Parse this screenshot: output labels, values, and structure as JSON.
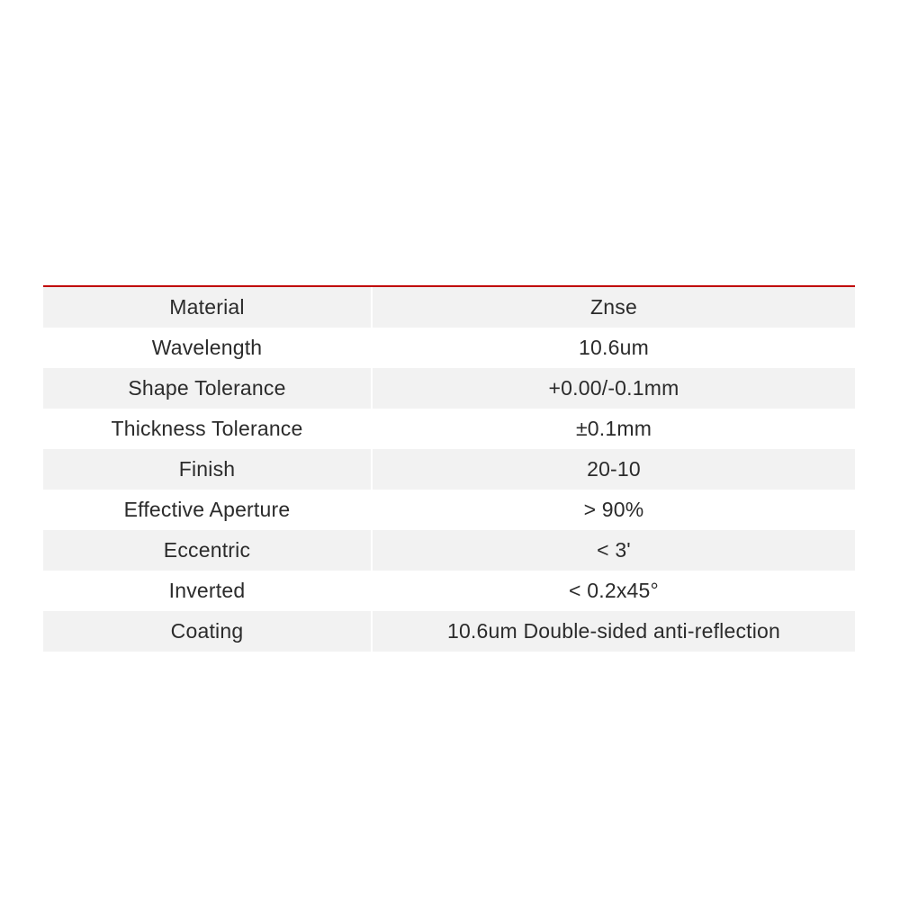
{
  "page": {
    "background_color": "#ffffff"
  },
  "table": {
    "accent_color": "#c00000",
    "stripe_color": "#f2f2f2",
    "text_color": "#2b2b2b",
    "columns": [
      "label",
      "value"
    ],
    "rows": [
      {
        "label": "Material",
        "value": "Znse"
      },
      {
        "label": "Wavelength",
        "value": "10.6um"
      },
      {
        "label": "Shape Tolerance",
        "value": "+0.00/-0.1mm"
      },
      {
        "label": "Thickness Tolerance",
        "value": "±0.1mm"
      },
      {
        "label": "Finish",
        "value": "20-10"
      },
      {
        "label": "Effective Aperture",
        "value": "> 90%"
      },
      {
        "label": "Eccentric",
        "value": "< 3'"
      },
      {
        "label": "Inverted",
        "value": "< 0.2x45°"
      },
      {
        "label": "Coating",
        "value": "10.6um Double-sided anti-reflection"
      }
    ]
  }
}
